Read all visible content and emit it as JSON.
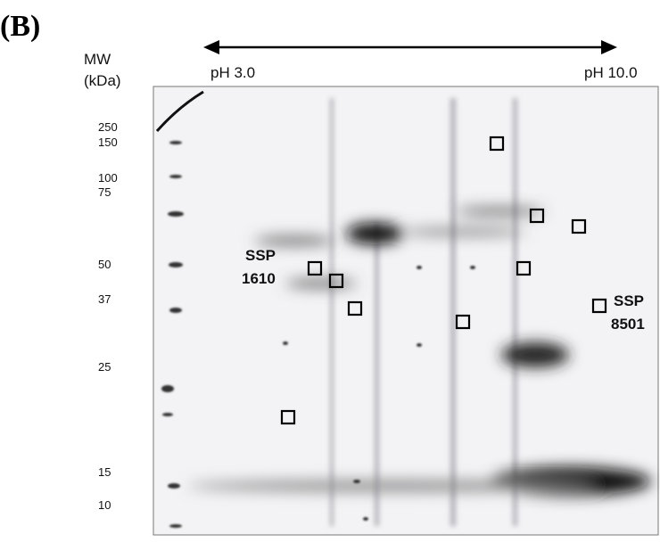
{
  "panel_label": "(B)",
  "mw_axis": {
    "title": "MW",
    "unit": "(kDa)",
    "markers": [
      "250",
      "150",
      "100",
      "75",
      "50",
      "37",
      "25",
      "15",
      "10"
    ]
  },
  "ph_axis": {
    "start": "pH 3.0",
    "end": "pH 10.0"
  },
  "spot_labels": [
    {
      "prefix": "SSP",
      "id": "1610"
    },
    {
      "prefix": "SSP",
      "id": "8501"
    }
  ]
}
